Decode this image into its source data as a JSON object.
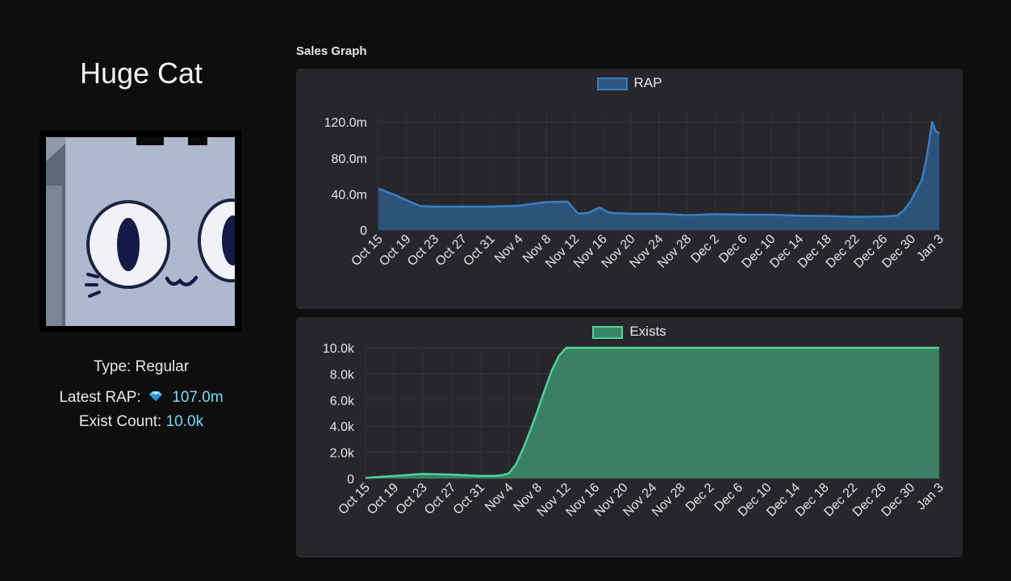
{
  "item": {
    "name": "Huge Cat",
    "type_label": "Type:",
    "type_value": "Regular",
    "rap_label": "Latest RAP:",
    "rap_value": "107.0m",
    "exist_label": "Exist Count:",
    "exist_value": "10.0k",
    "gem_icon": "diamond-gem-icon"
  },
  "graph_title": "Sales Graph",
  "colors": {
    "page_bg": "#0e0e0f",
    "panel_bg": "#27272b",
    "rap_line": "#3a7fc4",
    "rap_fill": "#2c5680",
    "exists_line": "#4dd39b",
    "exists_fill": "#3c8468",
    "value_text": "#7fd8f0"
  },
  "chart_data": [
    {
      "type": "area",
      "series": [
        {
          "name": "RAP",
          "x": [
            0,
            2,
            4,
            6,
            8,
            12,
            16,
            20,
            24,
            27,
            28.5,
            30,
            31.5,
            33,
            34.5,
            36,
            40,
            44,
            48,
            52,
            56,
            60,
            64,
            68,
            72,
            74,
            75,
            76,
            76.8,
            77.5,
            78.2,
            79,
            79.5,
            80
          ],
          "values": [
            46,
            40,
            33,
            26.5,
            26,
            26,
            26,
            27,
            31,
            31.5,
            18,
            19,
            25,
            19,
            18.5,
            18,
            18,
            16.5,
            17.5,
            17,
            17,
            16,
            15.5,
            14.5,
            15,
            16,
            22,
            33,
            45,
            55,
            80,
            120,
            110,
            107
          ]
        }
      ],
      "categories": [
        "Oct 15",
        "Oct 19",
        "Oct 23",
        "Oct 27",
        "Oct 31",
        "Nov 4",
        "Nov 8",
        "Nov 12",
        "Nov 16",
        "Nov 20",
        "Nov 24",
        "Nov 28",
        "Dec 2",
        "Dec 6",
        "Dec 10",
        "Dec 14",
        "Dec 18",
        "Dec 22",
        "Dec 26",
        "Dec 30",
        "Jan 3"
      ],
      "y_ticks": [
        "0",
        "40.0m",
        "80.0m",
        "120.0m"
      ],
      "ylim": [
        0,
        130
      ],
      "grid": true,
      "legend": "top-center"
    },
    {
      "type": "area",
      "series": [
        {
          "name": "Exists",
          "x": [
            0,
            4,
            8,
            12,
            16,
            18,
            19,
            20,
            21,
            22,
            23,
            24,
            25,
            26,
            27,
            28,
            80
          ],
          "values": [
            50,
            200,
            350,
            300,
            200,
            200,
            250,
            400,
            1100,
            2300,
            3700,
            5200,
            6800,
            8300,
            9400,
            10000,
            10000
          ]
        }
      ],
      "categories": [
        "Oct 15",
        "Oct 19",
        "Oct 23",
        "Oct 27",
        "Oct 31",
        "Nov 4",
        "Nov 8",
        "Nov 12",
        "Nov 16",
        "Nov 20",
        "Nov 24",
        "Nov 28",
        "Dec 2",
        "Dec 6",
        "Dec 10",
        "Dec 14",
        "Dec 18",
        "Dec 22",
        "Dec 26",
        "Dec 30",
        "Jan 3"
      ],
      "y_ticks": [
        "0",
        "2.0k",
        "4.0k",
        "6.0k",
        "8.0k",
        "10.0k"
      ],
      "ylim": [
        0,
        10000
      ],
      "grid": true,
      "legend": "top-center"
    }
  ]
}
